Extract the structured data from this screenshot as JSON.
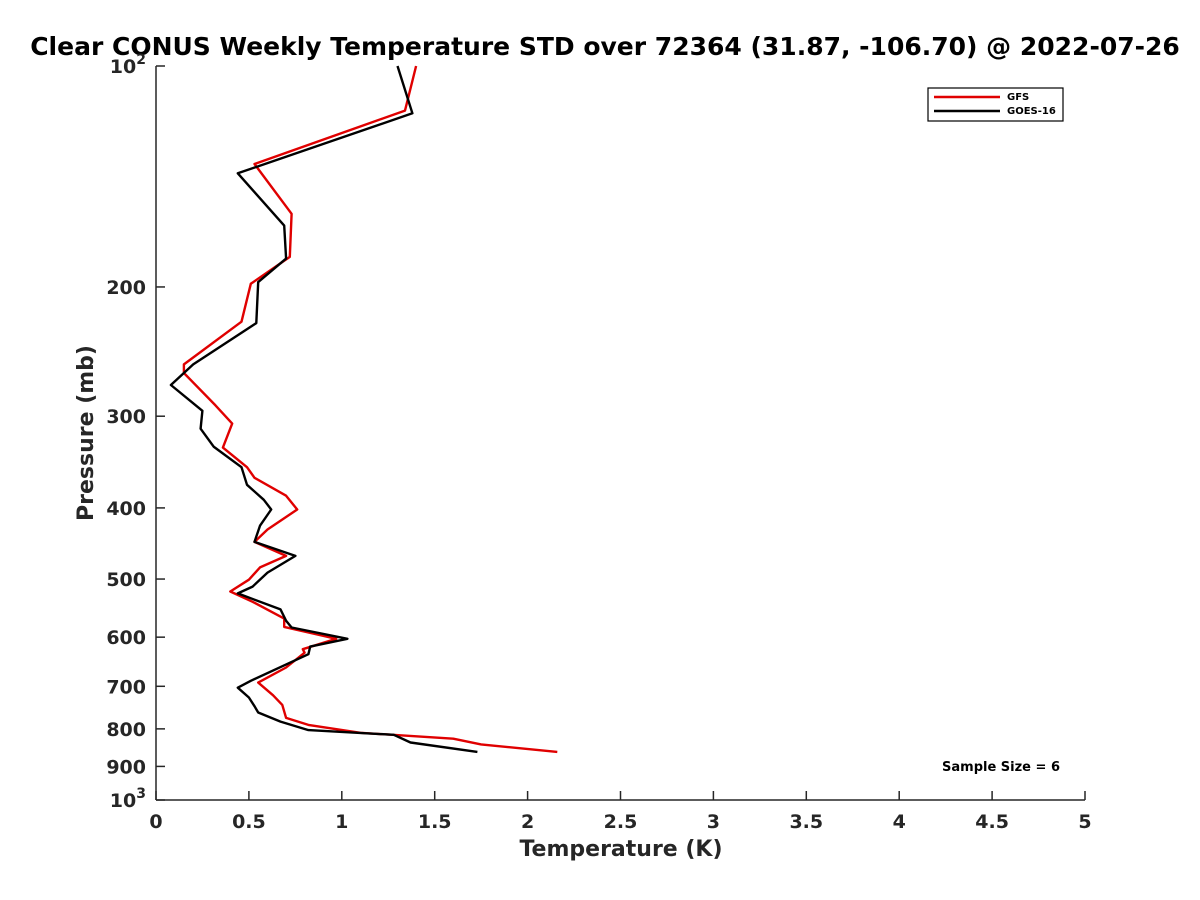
{
  "chart_data": {
    "type": "line",
    "title": "Clear CONUS Weekly Temperature STD over 72364 (31.87, -106.70) @ 2022-07-26",
    "xlabel": "Temperature (K)",
    "ylabel": "Pressure (mb)",
    "xlim": [
      0,
      5
    ],
    "ylim": [
      100,
      1000
    ],
    "y_scale": "log",
    "y_reversed": true,
    "x_ticks": [
      0,
      0.5,
      1,
      1.5,
      2,
      2.5,
      3,
      3.5,
      4,
      4.5,
      5
    ],
    "x_tick_labels": [
      "0",
      "0.5",
      "1",
      "1.5",
      "2",
      "2.5",
      "3",
      "3.5",
      "4",
      "4.5",
      "5"
    ],
    "y_ticks": [
      100,
      200,
      300,
      400,
      500,
      600,
      700,
      800,
      900,
      1000
    ],
    "y_tick_labels": [
      {
        "base": "10",
        "exp": "2"
      },
      {
        "base": "200"
      },
      {
        "base": "300"
      },
      {
        "base": "400"
      },
      {
        "base": "500"
      },
      {
        "base": "600"
      },
      {
        "base": "700"
      },
      {
        "base": "800"
      },
      {
        "base": "900"
      },
      {
        "base": "10",
        "exp": "3"
      }
    ],
    "grid": false,
    "legend_position": "top-right",
    "annotation": "Sample Size = 6",
    "series": [
      {
        "name": "GFS",
        "color": "#e00000",
        "points": [
          [
            1.4,
            100
          ],
          [
            1.34,
            115
          ],
          [
            0.53,
            136
          ],
          [
            0.73,
            159
          ],
          [
            0.72,
            182
          ],
          [
            0.51,
            198
          ],
          [
            0.46,
            223
          ],
          [
            0.15,
            255
          ],
          [
            0.15,
            262
          ],
          [
            0.32,
            290
          ],
          [
            0.41,
            307
          ],
          [
            0.36,
            331
          ],
          [
            0.49,
            352
          ],
          [
            0.53,
            364
          ],
          [
            0.7,
            385
          ],
          [
            0.76,
            402
          ],
          [
            0.6,
            428
          ],
          [
            0.53,
            445
          ],
          [
            0.7,
            465
          ],
          [
            0.56,
            482
          ],
          [
            0.5,
            501
          ],
          [
            0.4,
            520
          ],
          [
            0.52,
            537
          ],
          [
            0.69,
            566
          ],
          [
            0.69,
            581
          ],
          [
            0.97,
            603
          ],
          [
            0.79,
            623
          ],
          [
            0.8,
            630
          ],
          [
            0.7,
            660
          ],
          [
            0.55,
            692
          ],
          [
            0.63,
            720
          ],
          [
            0.68,
            742
          ],
          [
            0.7,
            773
          ],
          [
            0.82,
            790
          ],
          [
            1.1,
            810
          ],
          [
            1.6,
            825
          ],
          [
            1.75,
            840
          ],
          [
            2.16,
            860
          ]
        ]
      },
      {
        "name": "GOES-16",
        "color": "#000000",
        "points": [
          [
            1.3,
            100
          ],
          [
            1.38,
            116
          ],
          [
            0.44,
            140
          ],
          [
            0.69,
            165
          ],
          [
            0.7,
            183
          ],
          [
            0.55,
            197
          ],
          [
            0.54,
            224
          ],
          [
            0.2,
            255
          ],
          [
            0.08,
            272
          ],
          [
            0.25,
            295
          ],
          [
            0.24,
            312
          ],
          [
            0.31,
            330
          ],
          [
            0.46,
            352
          ],
          [
            0.49,
            372
          ],
          [
            0.58,
            390
          ],
          [
            0.62,
            402
          ],
          [
            0.56,
            423
          ],
          [
            0.53,
            445
          ],
          [
            0.75,
            465
          ],
          [
            0.6,
            490
          ],
          [
            0.52,
            512
          ],
          [
            0.44,
            523
          ],
          [
            0.67,
            550
          ],
          [
            0.7,
            570
          ],
          [
            0.73,
            582
          ],
          [
            1.03,
            603
          ],
          [
            0.83,
            618
          ],
          [
            0.82,
            633
          ],
          [
            0.51,
            688
          ],
          [
            0.44,
            703
          ],
          [
            0.5,
            725
          ],
          [
            0.53,
            745
          ],
          [
            0.55,
            760
          ],
          [
            0.67,
            782
          ],
          [
            0.82,
            803
          ],
          [
            1.28,
            815
          ],
          [
            1.37,
            835
          ],
          [
            1.73,
            860
          ]
        ]
      }
    ]
  }
}
